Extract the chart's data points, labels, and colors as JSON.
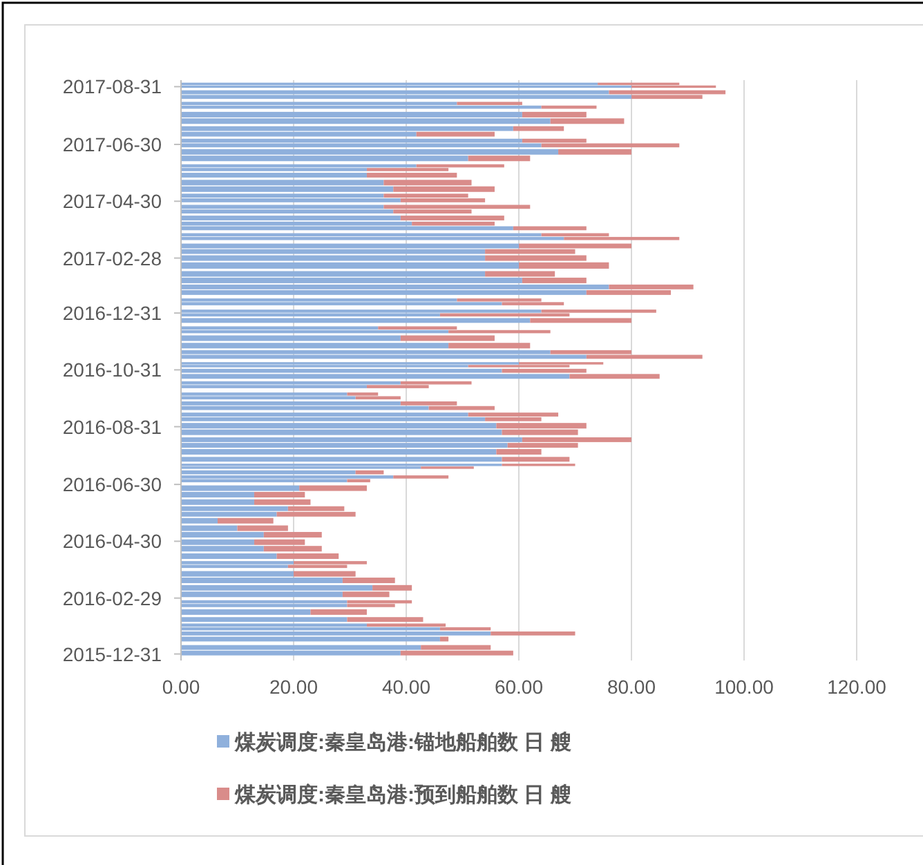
{
  "chart_data": {
    "type": "bar",
    "orientation": "horizontal",
    "stacked": true,
    "x": [
      "2016-01-01",
      "2016-01-07",
      "2016-01-16",
      "2016-01-22",
      "2016-01-27",
      "2016-01-31",
      "2016-02-06",
      "2016-02-14",
      "2016-02-21",
      "2016-02-25",
      "2016-03-04",
      "2016-03-11",
      "2016-03-19",
      "2016-03-26",
      "2016-04-03",
      "2016-04-07",
      "2016-04-14",
      "2016-04-22",
      "2016-04-29",
      "2016-05-07",
      "2016-05-14",
      "2016-05-22",
      "2016-05-29",
      "2016-06-04",
      "2016-06-11",
      "2016-06-19",
      "2016-06-26",
      "2016-07-04",
      "2016-07-08",
      "2016-07-13",
      "2016-07-18",
      "2016-07-21",
      "2016-07-27",
      "2016-08-04",
      "2016-08-11",
      "2016-08-17",
      "2016-08-25",
      "2016-09-01",
      "2016-09-08",
      "2016-09-13",
      "2016-09-20",
      "2016-09-25",
      "2016-10-01",
      "2016-10-05",
      "2016-10-13",
      "2016-10-17",
      "2016-10-24",
      "2016-10-30",
      "2016-11-04",
      "2016-11-07",
      "2016-11-14",
      "2016-11-19",
      "2016-11-26",
      "2016-12-04",
      "2016-12-11",
      "2016-12-15",
      "2016-12-23",
      "2016-12-29",
      "2017-01-02",
      "2017-01-10",
      "2017-01-14",
      "2017-01-22",
      "2017-01-28",
      "2017-02-04",
      "2017-02-11",
      "2017-02-20",
      "2017-02-28",
      "2017-03-07",
      "2017-03-13",
      "2017-03-21",
      "2017-03-25",
      "2017-04-01",
      "2017-04-06",
      "2017-04-12",
      "2017-04-19",
      "2017-04-24",
      "2017-05-01",
      "2017-05-06",
      "2017-05-13",
      "2017-05-20",
      "2017-05-28",
      "2017-06-03",
      "2017-06-07",
      "2017-06-15",
      "2017-06-22",
      "2017-06-29",
      "2017-07-04",
      "2017-07-11",
      "2017-07-17",
      "2017-07-25",
      "2017-08-01",
      "2017-08-09",
      "2017-08-13",
      "2017-08-20",
      "2017-08-25",
      "2017-08-31",
      "2017-09-03"
    ],
    "series": [
      {
        "name": "煤炭调度:秦皇岛港:锚地船舶数 日 艘",
        "color": "#8fb0dc",
        "values": [
          39,
          42.6,
          46,
          55,
          46,
          33,
          29.5,
          23,
          29.5,
          29.5,
          28.7,
          34,
          28.7,
          20,
          19,
          20,
          17,
          14.7,
          13,
          14.7,
          10,
          6.5,
          17,
          19,
          13,
          13,
          21,
          29.5,
          37.7,
          31,
          42.6,
          57,
          57,
          56,
          58,
          60.6,
          57,
          56,
          54,
          51,
          44,
          39,
          31,
          29.5,
          33,
          39,
          69,
          57,
          51,
          60,
          72,
          65.6,
          47.5,
          39,
          47.5,
          35,
          62,
          46,
          64,
          57,
          49,
          72,
          76,
          60.6,
          54,
          60,
          54,
          54,
          60,
          68,
          64,
          59,
          41,
          39,
          37.7,
          36,
          39,
          36,
          37.7,
          36,
          33,
          33,
          41.8,
          51,
          67,
          64,
          60.6,
          41.8,
          59,
          65.6,
          60.6,
          64,
          49,
          80,
          76,
          80,
          74
        ]
      },
      {
        "name": "煤炭调度:秦皇岛港:预到船舶数 日 艘",
        "color": "#d98c8a",
        "values": [
          20,
          12.4,
          1.5,
          15,
          9,
          14,
          13.5,
          10,
          8.5,
          11.5,
          8.3,
          7,
          9.3,
          11,
          10.5,
          13,
          11,
          10.3,
          9,
          10.3,
          9,
          9.9,
          14,
          10,
          10,
          9,
          12,
          4.1,
          9.8,
          5,
          9.4,
          13,
          12,
          8,
          12.5,
          19.4,
          13.5,
          16,
          10,
          16,
          11.7,
          10,
          8,
          5.5,
          11,
          12.6,
          16,
          15,
          18,
          15,
          20.6,
          14.4,
          14.5,
          16.7,
          18.1,
          14,
          18,
          23,
          20.4,
          11,
          15,
          15,
          15,
          11.4,
          12.4,
          16,
          18,
          16,
          20,
          20.5,
          12,
          13,
          14.7,
          18.4,
          13.9,
          26,
          15,
          15,
          18,
          15.6,
          16,
          14.5,
          15.6,
          11,
          13,
          24.5,
          11.4,
          13.9,
          9,
          13.1,
          11.4,
          9.8,
          11.6,
          12.6,
          20.7,
          15,
          14.5
        ]
      }
    ],
    "xlim": [
      0,
      120
    ],
    "xticks": [
      {
        "value": 0,
        "label": "0.00"
      },
      {
        "value": 20,
        "label": "20.00"
      },
      {
        "value": 40,
        "label": "40.00"
      },
      {
        "value": 60,
        "label": "60.00"
      },
      {
        "value": 80,
        "label": "80.00"
      },
      {
        "value": 100,
        "label": "100.00"
      },
      {
        "value": 120,
        "label": "120.00"
      }
    ],
    "ylim": [
      "2015-12-24",
      "2017-09-07"
    ],
    "yticks": [
      {
        "value": "2015-12-31",
        "label": "2015-12-31"
      },
      {
        "value": "2016-02-29",
        "label": "2016-02-29"
      },
      {
        "value": "2016-04-30",
        "label": "2016-04-30"
      },
      {
        "value": "2016-06-30",
        "label": "2016-06-30"
      },
      {
        "value": "2016-08-31",
        "label": "2016-08-31"
      },
      {
        "value": "2016-10-31",
        "label": "2016-10-31"
      },
      {
        "value": "2016-12-31",
        "label": "2016-12-31"
      },
      {
        "value": "2017-02-28",
        "label": "2017-02-28"
      },
      {
        "value": "2017-04-30",
        "label": "2017-04-30"
      },
      {
        "value": "2017-06-30",
        "label": "2017-06-30"
      },
      {
        "value": "2017-08-31",
        "label": "2017-08-31"
      }
    ],
    "grid": "x",
    "legend": "bottom"
  }
}
